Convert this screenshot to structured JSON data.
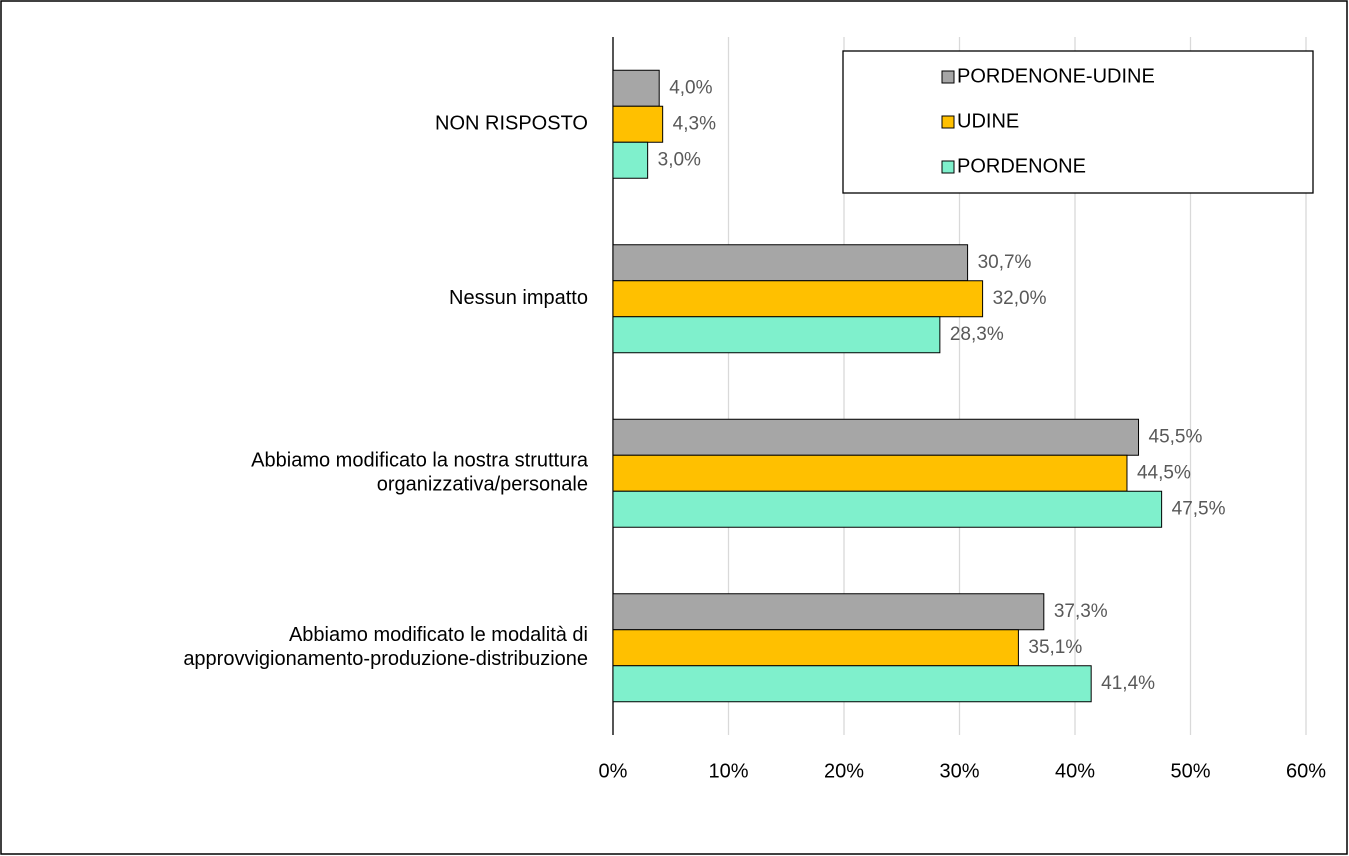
{
  "chart_data": {
    "type": "bar",
    "orientation": "horizontal",
    "categories": [
      "NON RISPOSTO",
      "Nessun impatto",
      "Abbiamo modificato la nostra struttura\norganizzativa/personale",
      "Abbiamo modificato le modalità di\napprovvigionamento-produzione-distribuzione"
    ],
    "series": [
      {
        "name": "PORDENONE-UDINE",
        "color": "#a6a6a6",
        "values": [
          4.0,
          30.7,
          45.5,
          37.3
        ],
        "value_labels": [
          "4,0%",
          "30,7%",
          "45,5%",
          "37,3%"
        ]
      },
      {
        "name": "UDINE",
        "color": "#ffc000",
        "values": [
          4.3,
          32.0,
          44.5,
          35.1
        ],
        "value_labels": [
          "4,3%",
          "32,0%",
          "44,5%",
          "35,1%"
        ]
      },
      {
        "name": "PORDENONE",
        "color": "#7ff0cc",
        "values": [
          3.0,
          28.3,
          47.5,
          41.4
        ],
        "value_labels": [
          "3,0%",
          "28,3%",
          "47,5%",
          "41,4%"
        ]
      }
    ],
    "xlim": [
      0,
      60
    ],
    "xticks": [
      {
        "value": 0,
        "label": "0%"
      },
      {
        "value": 10,
        "label": "10%"
      },
      {
        "value": 20,
        "label": "20%"
      },
      {
        "value": 30,
        "label": "30%"
      },
      {
        "value": 40,
        "label": "40%"
      },
      {
        "value": 50,
        "label": "50%"
      },
      {
        "value": 60,
        "label": "60%"
      }
    ],
    "grid": true,
    "legend": "upper right"
  }
}
